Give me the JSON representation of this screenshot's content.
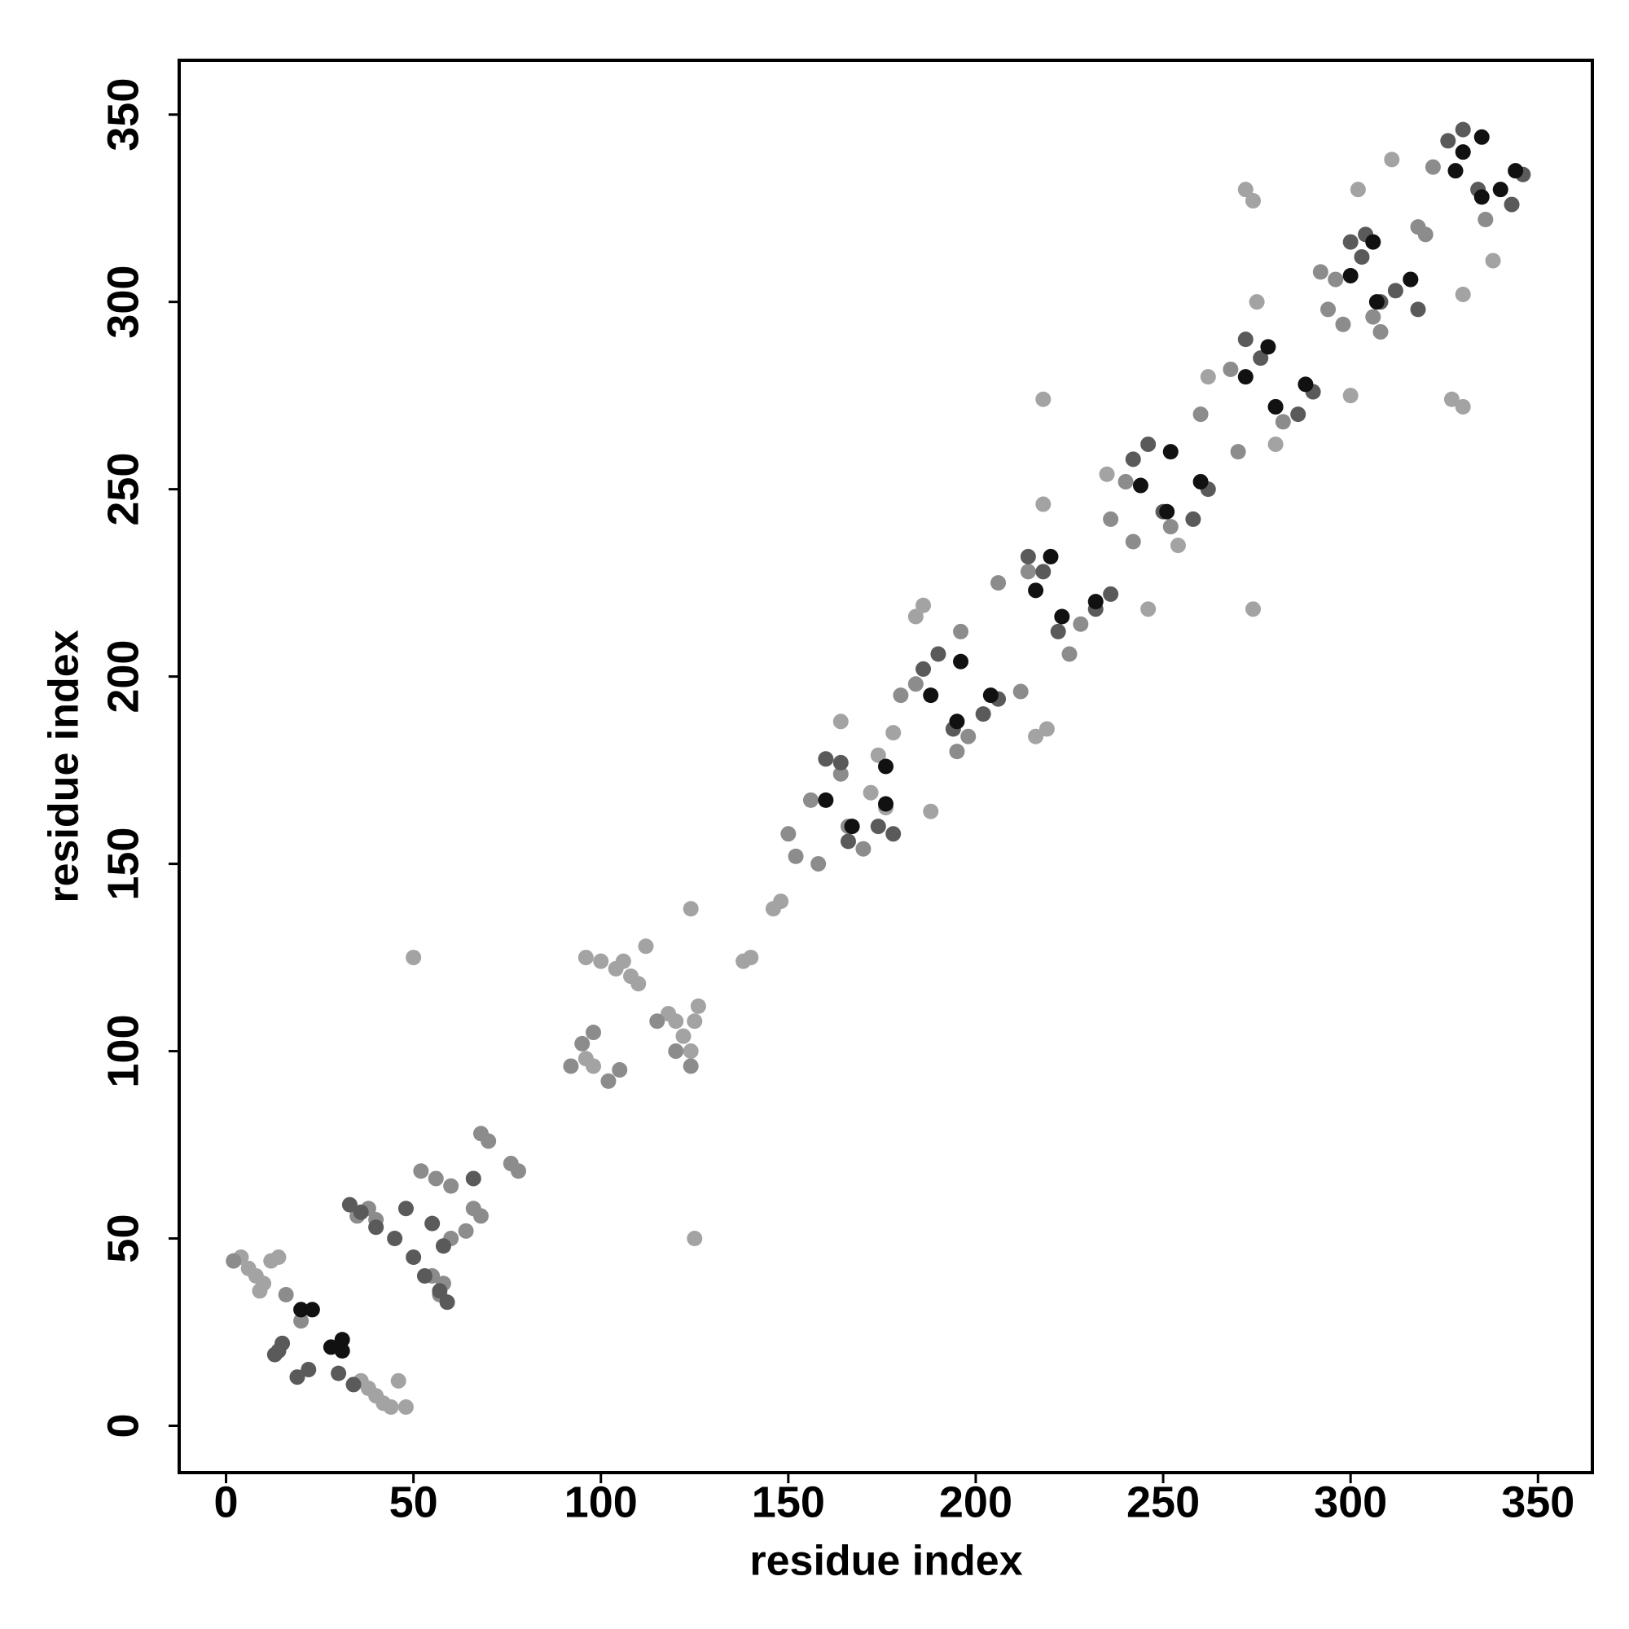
{
  "chart_data": {
    "type": "scatter",
    "x_label": "residue index",
    "y_label": "residue index",
    "xlim": [
      -12.5,
      364.5
    ],
    "ylim": [
      -12.5,
      364.5
    ],
    "xticks": [
      0,
      50,
      100,
      150,
      200,
      250,
      300,
      350
    ],
    "yticks": [
      0,
      50,
      100,
      150,
      200,
      250,
      300,
      350
    ],
    "grid": false,
    "series": [
      {
        "color": "#a3a3a3",
        "x": [
          4,
          6,
          8,
          10,
          12,
          14,
          9,
          38,
          40,
          42,
          44,
          46,
          48,
          36,
          50,
          125,
          96,
          100,
          104,
          108,
          110,
          112,
          106,
          124,
          122,
          120,
          118,
          126,
          124,
          138,
          140,
          146,
          148,
          125,
          98,
          96,
          164,
          188,
          172,
          176,
          184,
          186,
          216,
          219,
          218,
          246,
          218,
          274,
          272,
          274,
          330,
          327,
          302,
          330,
          300,
          275,
          338,
          311,
          280,
          262,
          235,
          254,
          174,
          178
        ],
        "y": [
          45,
          42,
          40,
          38,
          44,
          45,
          36,
          10,
          8,
          6,
          5,
          12,
          5,
          12,
          125,
          50,
          125,
          124,
          122,
          120,
          118,
          128,
          124,
          100,
          104,
          108,
          110,
          112,
          138,
          124,
          125,
          138,
          140,
          108,
          96,
          98,
          188,
          164,
          169,
          165,
          216,
          219,
          184,
          186,
          246,
          218,
          274,
          218,
          330,
          327,
          272,
          274,
          330,
          302,
          275,
          300,
          311,
          338,
          262,
          280,
          254,
          235,
          179,
          185
        ]
      },
      {
        "color": "#8c8c8c",
        "x": [
          2,
          20,
          16,
          55,
          58,
          57,
          40,
          38,
          35,
          52,
          56,
          60,
          66,
          68,
          64,
          60,
          68,
          70,
          76,
          78,
          92,
          95,
          98,
          102,
          105,
          115,
          120,
          124,
          150,
          152,
          158,
          156,
          164,
          166,
          170,
          180,
          184,
          195,
          198,
          196,
          212,
          206,
          225,
          214,
          228,
          240,
          252,
          236,
          242,
          260,
          270,
          268,
          282,
          292,
          308,
          294,
          298,
          296,
          306,
          322,
          336,
          318,
          320
        ],
        "y": [
          44,
          28,
          35,
          40,
          38,
          35,
          55,
          58,
          56,
          68,
          66,
          64,
          58,
          56,
          52,
          50,
          78,
          76,
          70,
          68,
          96,
          102,
          105,
          92,
          95,
          108,
          100,
          96,
          158,
          152,
          150,
          167,
          174,
          160,
          154,
          195,
          198,
          180,
          184,
          212,
          196,
          225,
          206,
          228,
          214,
          252,
          240,
          242,
          236,
          270,
          260,
          282,
          268,
          308,
          292,
          298,
          294,
          306,
          296,
          336,
          322,
          320,
          318
        ]
      },
      {
        "color": "#5a5a5a",
        "x": [
          14,
          19,
          22,
          30,
          34,
          13,
          15,
          33,
          36,
          40,
          45,
          59,
          57,
          53,
          50,
          48,
          58,
          66,
          55,
          160,
          164,
          166,
          174,
          178,
          186,
          190,
          194,
          202,
          206,
          214,
          218,
          222,
          232,
          236,
          242,
          246,
          250,
          258,
          262,
          272,
          276,
          280,
          290,
          286,
          300,
          304,
          308,
          316,
          318,
          326,
          330,
          334,
          343,
          346,
          312,
          303
        ],
        "y": [
          20,
          13,
          15,
          14,
          11,
          19,
          22,
          59,
          57,
          53,
          50,
          33,
          36,
          40,
          45,
          58,
          48,
          66,
          54,
          178,
          177,
          156,
          160,
          158,
          202,
          206,
          186,
          190,
          194,
          232,
          228,
          212,
          218,
          222,
          258,
          262,
          244,
          242,
          250,
          290,
          285,
          272,
          276,
          270,
          316,
          318,
          300,
          306,
          298,
          343,
          346,
          330,
          326,
          334,
          303,
          312
        ]
      },
      {
        "color": "#111111",
        "x": [
          20,
          23,
          31,
          31,
          28,
          160,
          167,
          176,
          176,
          188,
          195,
          196,
          204,
          216,
          223,
          220,
          232,
          244,
          251,
          252,
          260,
          272,
          280,
          278,
          288,
          300,
          307,
          306,
          316,
          328,
          335,
          335,
          344,
          330,
          340
        ],
        "y": [
          31,
          31,
          23,
          20,
          21,
          167,
          160,
          176,
          166,
          195,
          188,
          204,
          195,
          223,
          216,
          232,
          220,
          251,
          244,
          260,
          252,
          280,
          272,
          288,
          278,
          307,
          300,
          316,
          306,
          335,
          328,
          344,
          335,
          340,
          330
        ]
      }
    ]
  }
}
